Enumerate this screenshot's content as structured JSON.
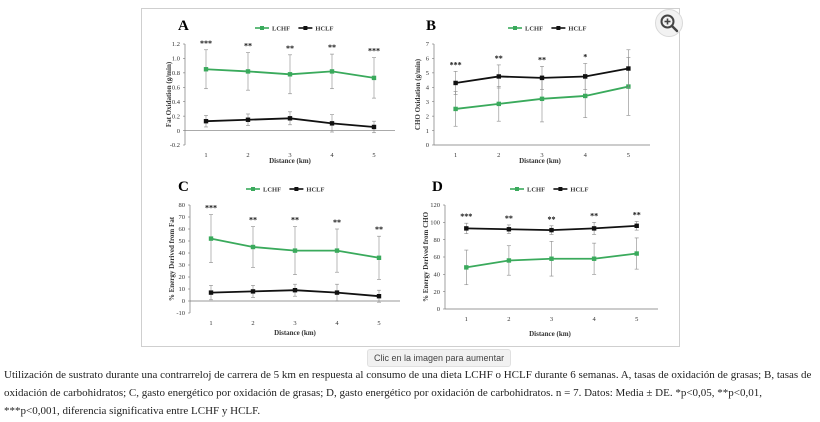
{
  "page": {
    "enlarge_hint": "Clic en la imagen para aumentar",
    "caption": "Utilización de sustrato durante una contrarreloj de carrera de 5 km en respuesta al consumo de una dieta LCHF o HCLF durante 6 semanas. A, tasas de oxidación de grasas; B, tasas de oxidación de carbohidratos; C, gasto energético por oxidación de grasas; D, gasto energético por oxidación de carbohidratos. n = 7. Datos: Media ± DE. *p<0,05, **p<0,01, ***p<0,001, diferencia significativa entre LCHF y HCLF.",
    "zoom_icon": "zoom-in-icon"
  },
  "colors": {
    "lchf": "#3aaa5c",
    "hclf": "#111111",
    "error_bar": "#888888"
  },
  "chart_data": [
    {
      "panel": "A",
      "type": "line",
      "x": [
        1,
        2,
        3,
        4,
        5
      ],
      "xticks": [
        "1",
        "2",
        "3",
        "4",
        "5"
      ],
      "xlabel": "Distance (km)",
      "ylabel": "Fat Oxidation (g/min)",
      "ylim": [
        -0.2,
        1.2
      ],
      "yticks": [
        -0.2,
        0,
        0.2,
        0.4,
        0.6,
        0.8,
        1.0,
        1.2
      ],
      "ytick_labels": [
        "-0.2",
        "0",
        "0.2",
        "0.4",
        "0.6",
        "0.8",
        "1.0",
        "1.2"
      ],
      "legend_position": "top-center",
      "series": [
        {
          "name": "LCHF",
          "values": [
            0.85,
            0.82,
            0.78,
            0.82,
            0.73
          ],
          "errors": [
            0.27,
            0.26,
            0.27,
            0.24,
            0.28
          ]
        },
        {
          "name": "HCLF",
          "values": [
            0.13,
            0.15,
            0.17,
            0.1,
            0.05
          ],
          "errors": [
            0.08,
            0.08,
            0.09,
            0.12,
            0.08
          ]
        }
      ],
      "significance": [
        "***",
        "**",
        "**",
        "**",
        "***"
      ]
    },
    {
      "panel": "B",
      "type": "line",
      "x": [
        1,
        2,
        3,
        4,
        5
      ],
      "xticks": [
        "1",
        "2",
        "3",
        "4",
        "5"
      ],
      "xlabel": "Distance (km)",
      "ylabel": "CHO Oxidation (g/min)",
      "ylim": [
        0,
        7
      ],
      "yticks": [
        0,
        1,
        2,
        3,
        4,
        5,
        6,
        7
      ],
      "ytick_labels": [
        "0",
        "1",
        "2",
        "3",
        "4",
        "5",
        "6",
        "7"
      ],
      "legend_position": "top-center",
      "series": [
        {
          "name": "LCHF",
          "values": [
            2.5,
            2.85,
            3.2,
            3.4,
            4.05
          ],
          "errors": [
            1.2,
            1.2,
            1.6,
            1.5,
            2.0
          ]
        },
        {
          "name": "HCLF",
          "values": [
            4.3,
            4.75,
            4.65,
            4.75,
            5.3
          ],
          "errors": [
            0.8,
            0.8,
            0.8,
            0.9,
            1.3
          ]
        }
      ],
      "significance": [
        "***",
        "**",
        "**",
        "*",
        ""
      ]
    },
    {
      "panel": "C",
      "type": "line",
      "x": [
        1,
        2,
        3,
        4,
        5
      ],
      "xticks": [
        "1",
        "2",
        "3",
        "4",
        "5"
      ],
      "xlabel": "Distance (km)",
      "ylabel": "% Energy Derived from Fat",
      "ylim": [
        -10,
        80
      ],
      "yticks": [
        -10,
        0,
        10,
        20,
        30,
        40,
        50,
        60,
        70,
        80
      ],
      "ytick_labels": [
        "-10",
        "0",
        "10",
        "20",
        "30",
        "40",
        "50",
        "60",
        "70",
        "80"
      ],
      "legend_position": "top-center",
      "series": [
        {
          "name": "LCHF",
          "values": [
            52,
            45,
            42,
            42,
            36
          ],
          "errors": [
            20,
            17,
            20,
            18,
            18
          ]
        },
        {
          "name": "HCLF",
          "values": [
            7,
            8,
            9,
            7,
            4
          ],
          "errors": [
            6,
            5,
            5,
            7,
            5
          ]
        }
      ],
      "significance": [
        "***",
        "**",
        "**",
        "**",
        "**"
      ]
    },
    {
      "panel": "D",
      "type": "line",
      "x": [
        1,
        2,
        3,
        4,
        5
      ],
      "xticks": [
        "1",
        "2",
        "3",
        "4",
        "5"
      ],
      "xlabel": "Distance (km)",
      "ylabel": "% Energy Derived from CHO",
      "ylim": [
        0,
        120
      ],
      "yticks": [
        0,
        20,
        40,
        60,
        80,
        100,
        120
      ],
      "ytick_labels": [
        "0",
        "20",
        "40",
        "60",
        "80",
        "100",
        "120"
      ],
      "legend_position": "top-center",
      "series": [
        {
          "name": "LCHF",
          "values": [
            48,
            56,
            58,
            58,
            64
          ],
          "errors": [
            20,
            17,
            20,
            18,
            18
          ]
        },
        {
          "name": "HCLF",
          "values": [
            93,
            92,
            91,
            93,
            96
          ],
          "errors": [
            6,
            5,
            5,
            7,
            5
          ]
        }
      ],
      "significance": [
        "***",
        "**",
        "**",
        "**",
        "**"
      ]
    }
  ]
}
